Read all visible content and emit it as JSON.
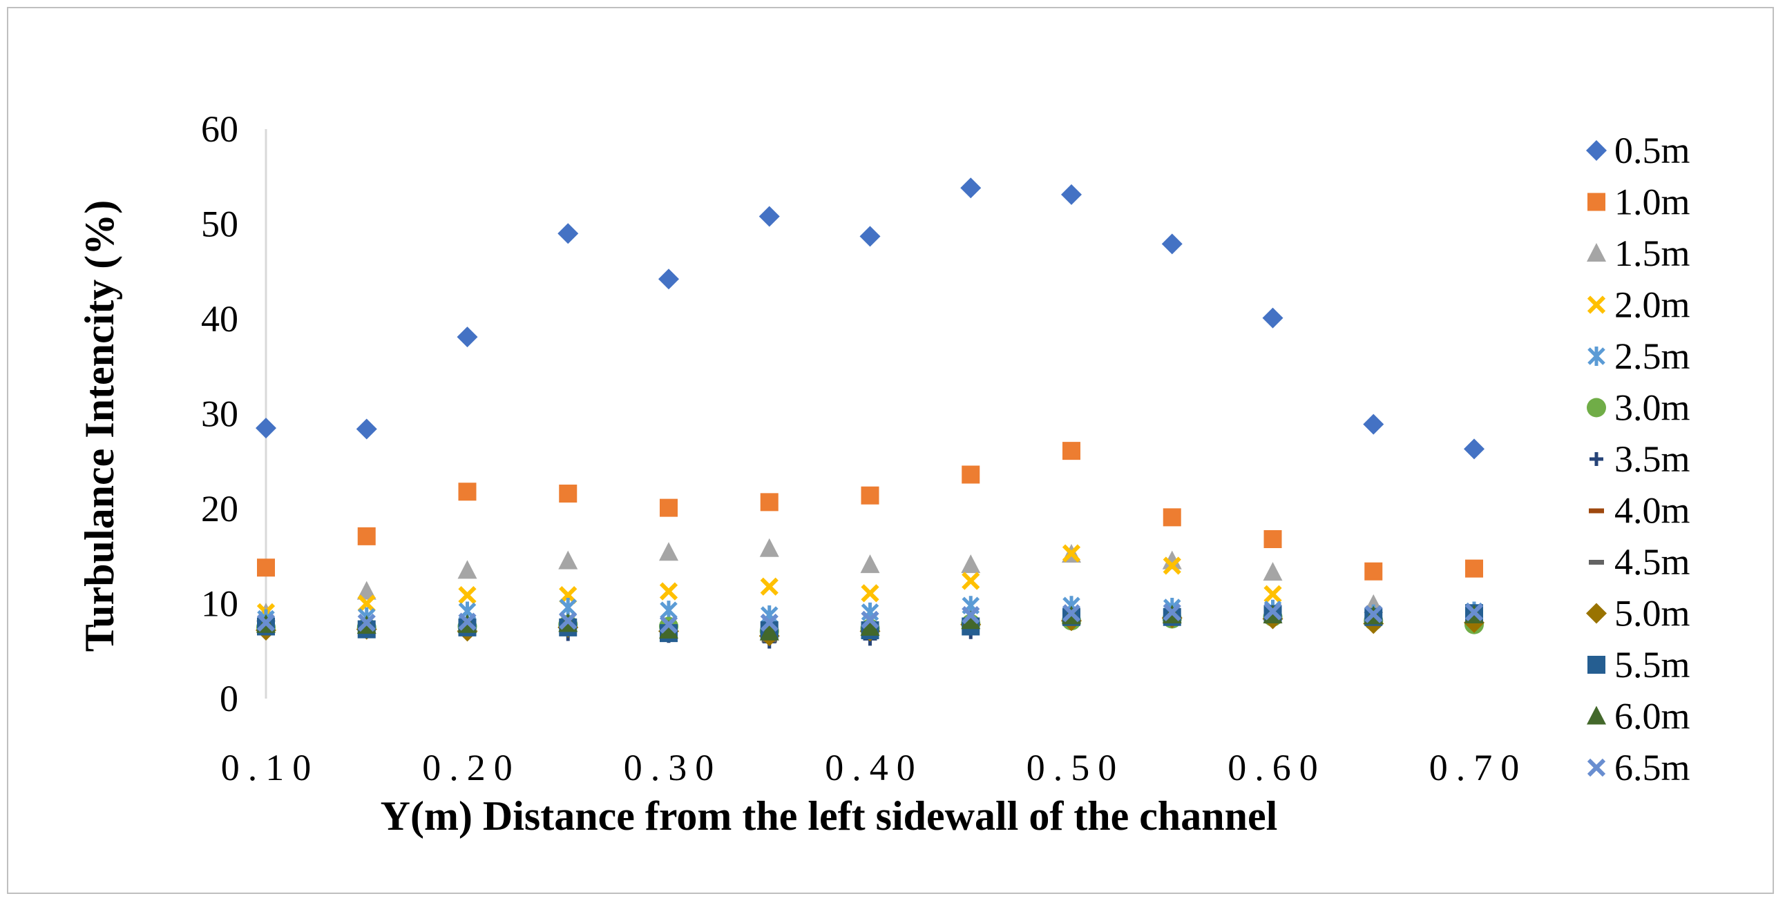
{
  "chart_data": {
    "type": "scatter",
    "title": "",
    "xlabel": "Y(m) Distance from the left sidewall of the channel",
    "ylabel": "Turbulance Intencity (%)",
    "xlim": [
      0.1,
      0.7
    ],
    "ylim": [
      0,
      60
    ],
    "grid": false,
    "legend_position": "right",
    "x_ticks": [
      "0.10",
      "0.20",
      "0.30",
      "0.40",
      "0.50",
      "0.60",
      "0.70"
    ],
    "y_ticks": [
      "0",
      "10",
      "20",
      "30",
      "40",
      "50",
      "60"
    ],
    "x": [
      0.1,
      0.15,
      0.2,
      0.25,
      0.3,
      0.35,
      0.4,
      0.45,
      0.5,
      0.55,
      0.6,
      0.65,
      0.7
    ],
    "series": [
      {
        "name": "0.5m",
        "marker": "diamond",
        "color": "#4472c4",
        "values": [
          28.5,
          28.4,
          38.1,
          49.0,
          44.2,
          50.8,
          48.7,
          53.8,
          53.1,
          47.9,
          40.1,
          28.9,
          26.3
        ]
      },
      {
        "name": "1.0m",
        "marker": "square",
        "color": "#ed7d31",
        "values": [
          13.8,
          17.1,
          21.8,
          21.6,
          20.1,
          20.7,
          21.4,
          23.6,
          26.1,
          19.1,
          16.8,
          13.4,
          13.7
        ]
      },
      {
        "name": "1.5m",
        "marker": "triangle",
        "color": "#a5a5a5",
        "values": [
          9.0,
          11.3,
          13.5,
          14.5,
          15.4,
          15.8,
          14.1,
          14.1,
          15.2,
          14.5,
          13.3,
          9.9,
          8.8
        ]
      },
      {
        "name": "2.0m",
        "marker": "x",
        "color": "#ffc000",
        "values": [
          9.1,
          10.0,
          10.9,
          10.9,
          11.3,
          11.8,
          11.1,
          12.4,
          15.3,
          14.0,
          11.0,
          8.9,
          9.0
        ]
      },
      {
        "name": "2.5m",
        "marker": "star",
        "color": "#5b9bd5",
        "values": [
          8.4,
          8.6,
          9.2,
          9.6,
          9.3,
          8.8,
          9.1,
          9.8,
          9.8,
          9.6,
          9.4,
          8.9,
          9.2
        ]
      },
      {
        "name": "3.0m",
        "marker": "circle",
        "color": "#70ad47",
        "values": [
          7.5,
          7.5,
          7.6,
          7.8,
          7.6,
          7.1,
          7.4,
          7.9,
          8.2,
          8.4,
          8.6,
          8.2,
          7.8
        ]
      },
      {
        "name": "3.5m",
        "marker": "plus",
        "color": "#264478",
        "values": [
          7.6,
          7.4,
          7.5,
          6.8,
          6.6,
          6.0,
          6.3,
          7.0,
          8.3,
          8.5,
          8.6,
          8.5,
          8.6
        ]
      },
      {
        "name": "4.0m",
        "marker": "dash",
        "color": "#9e480e",
        "values": [
          7.3,
          7.2,
          7.3,
          7.1,
          6.8,
          6.3,
          6.7,
          7.5,
          8.0,
          8.3,
          8.2,
          8.1,
          8.4
        ]
      },
      {
        "name": "4.5m",
        "marker": "dash",
        "color": "#636363",
        "values": [
          7.5,
          7.4,
          7.5,
          7.3,
          6.9,
          6.2,
          6.9,
          7.7,
          8.0,
          8.4,
          8.2,
          8.2,
          8.5
        ]
      },
      {
        "name": "5.0m",
        "marker": "diamond",
        "color": "#997300",
        "values": [
          7.2,
          7.3,
          7.1,
          7.5,
          7.1,
          6.6,
          7.1,
          7.8,
          8.2,
          8.5,
          8.4,
          7.9,
          8.0
        ]
      },
      {
        "name": "5.5m",
        "marker": "square",
        "color": "#255e91",
        "values": [
          7.6,
          7.3,
          7.5,
          7.5,
          6.9,
          7.2,
          7.2,
          7.6,
          8.6,
          8.6,
          8.9,
          8.6,
          9.0
        ]
      },
      {
        "name": "6.0m",
        "marker": "triangle",
        "color": "#43682b",
        "values": [
          7.8,
          7.7,
          7.8,
          7.9,
          7.2,
          7.0,
          7.5,
          8.2,
          8.7,
          8.8,
          8.8,
          8.7,
          8.8
        ]
      },
      {
        "name": "6.5m",
        "marker": "x",
        "color": "#698ed0",
        "values": [
          8.0,
          8.0,
          8.1,
          8.2,
          7.8,
          8.0,
          8.3,
          8.8,
          9.0,
          9.1,
          9.2,
          8.9,
          9.1
        ]
      }
    ]
  }
}
